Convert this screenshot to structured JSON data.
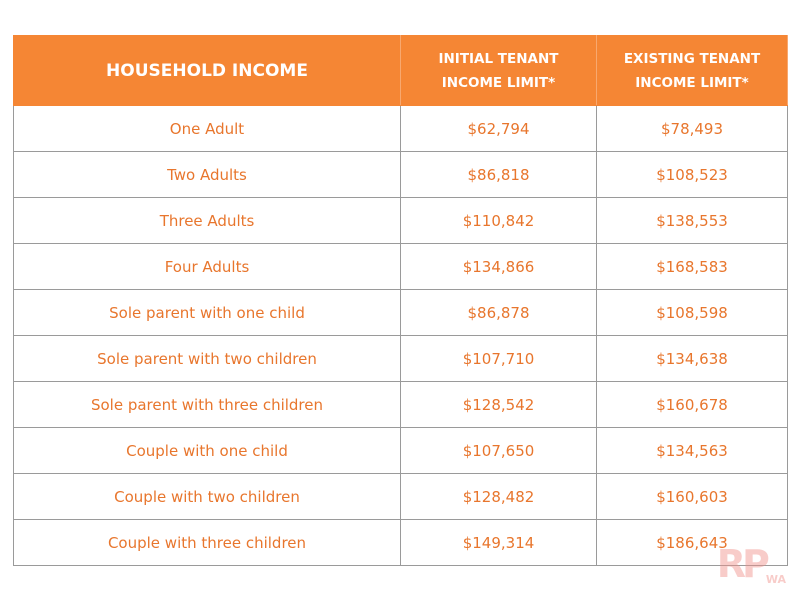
{
  "table": {
    "header": [
      "HOUSEHOLD INCOME",
      "INITIAL TENANT INCOME LIMIT*",
      "EXISTING TENANT INCOME LIMIT*"
    ],
    "rows": [
      [
        "One Adult",
        "$62,794",
        "$78,493"
      ],
      [
        "Two Adults",
        "$86,818",
        "$108,523"
      ],
      [
        "Three Adults",
        "$110,842",
        "$138,553"
      ],
      [
        "Four Adults",
        "$134,866",
        "$168,583"
      ],
      [
        "Sole parent with one child",
        "$86,878",
        "$108,598"
      ],
      [
        "Sole parent with two children",
        "$107,710",
        "$134,638"
      ],
      [
        "Sole parent with three children",
        "$128,542",
        "$160,678"
      ],
      [
        "Couple with one child",
        "$107,650",
        "$134,563"
      ],
      [
        "Couple with two children",
        "$128,482",
        "$160,603"
      ],
      [
        "Couple with three children",
        "$149,314",
        "$186,643"
      ]
    ]
  },
  "logo": {
    "mark": "RP",
    "sub": "WA"
  }
}
